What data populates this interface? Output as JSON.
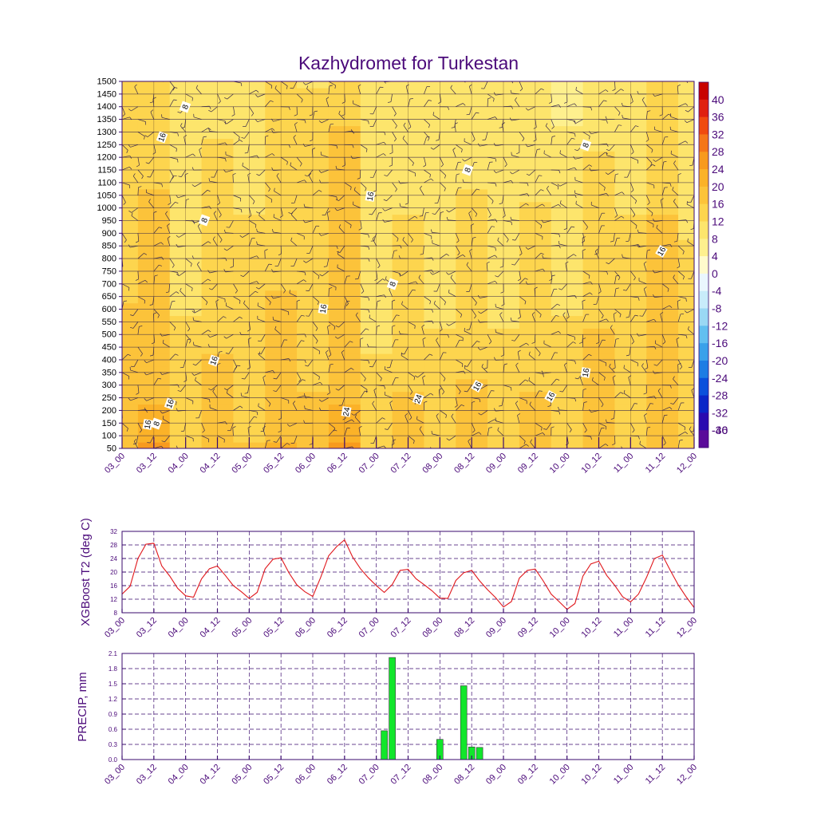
{
  "colors": {
    "axis": "#3a0a6e",
    "text": "#4b0a7a",
    "t2_line": "#e0161b",
    "precip_bar": "#11e62b",
    "grid": "#3a0a6e"
  },
  "time_labels": [
    "03_00",
    "03_12",
    "04_00",
    "04_12",
    "05_00",
    "05_12",
    "06_00",
    "06_12",
    "07_00",
    "07_12",
    "08_00",
    "08_12",
    "09_00",
    "09_12",
    "10_00",
    "10_12",
    "11_00",
    "11_12",
    "12_00"
  ],
  "chart_data": [
    {
      "type": "heatmap",
      "title": "Kazhydromet for Turkestan",
      "xlabel": "",
      "ylabel": "",
      "x_categories": [
        "03_00",
        "03_12",
        "04_00",
        "04_12",
        "05_00",
        "05_12",
        "06_00",
        "06_12",
        "07_00",
        "07_12",
        "08_00",
        "08_12",
        "09_00",
        "09_12",
        "10_00",
        "10_12",
        "11_00",
        "11_12",
        "12_00"
      ],
      "y_levels": [
        50,
        100,
        150,
        200,
        250,
        300,
        350,
        400,
        450,
        500,
        550,
        600,
        650,
        700,
        750,
        800,
        850,
        900,
        950,
        1000,
        1050,
        1100,
        1150,
        1200,
        1250,
        1300,
        1350,
        1400,
        1450,
        1500
      ],
      "ylim": [
        50,
        1500
      ],
      "colorbar": {
        "labels": [
          "40",
          "36",
          "32",
          "28",
          "24",
          "20",
          "16",
          "12",
          "8",
          "4",
          "0",
          "-4",
          "-8",
          "-12",
          "-16",
          "-20",
          "-24",
          "-28",
          "-32",
          "-36",
          "-40"
        ],
        "colors": [
          "#c80000",
          "#e02010",
          "#f04a10",
          "#f5761a",
          "#f89a1e",
          "#fbb228",
          "#fcc33a",
          "#fdd54e",
          "#fde56c",
          "#fef08e",
          "#fffbcc",
          "#eaf7fd",
          "#c8ecfa",
          "#9ad8f4",
          "#62bff0",
          "#3aa1ea",
          "#1d7de4",
          "#0a50dc",
          "#0a26c8",
          "#2a0ab0",
          "#5a0a9a"
        ]
      },
      "contour_labels": [
        "8",
        "16",
        "8",
        "8",
        "16",
        "16",
        "16",
        "8",
        "24",
        "16",
        "24",
        "16",
        "8",
        "16",
        "8",
        "16",
        "16",
        "16"
      ],
      "temperature_columns": [
        [
          19,
          18,
          18,
          17,
          17,
          17,
          17,
          16,
          16,
          16,
          16,
          16,
          15,
          15,
          15,
          15,
          15,
          14,
          14,
          14,
          14,
          14,
          14,
          14,
          14,
          13,
          13,
          13,
          13,
          13
        ],
        [
          24,
          22,
          21,
          20,
          19,
          19,
          18,
          17,
          17,
          17,
          17,
          16,
          16,
          16,
          16,
          16,
          16,
          16,
          16,
          16,
          16,
          15,
          15,
          15,
          15,
          15,
          14,
          14,
          13,
          13
        ],
        [
          15,
          14,
          14,
          13,
          13,
          13,
          12,
          12,
          12,
          12,
          12,
          11,
          11,
          10,
          10,
          10,
          9,
          9,
          8,
          8,
          8,
          8,
          8,
          8,
          8,
          9,
          9,
          9,
          10,
          10
        ],
        [
          18,
          18,
          18,
          18,
          17,
          17,
          16,
          16,
          15,
          15,
          15,
          14,
          14,
          14,
          14,
          14,
          13,
          13,
          13,
          12,
          12,
          12,
          12,
          12,
          12,
          11,
          11,
          11,
          11,
          11
        ],
        [
          16,
          15,
          15,
          14,
          14,
          14,
          14,
          13,
          13,
          13,
          13,
          13,
          12,
          12,
          12,
          12,
          12,
          12,
          12,
          11,
          11,
          11,
          11,
          11,
          11,
          11,
          11,
          11,
          10,
          10
        ],
        [
          20,
          19,
          19,
          18,
          18,
          18,
          17,
          17,
          17,
          16,
          16,
          16,
          16,
          15,
          15,
          14,
          14,
          14,
          14,
          13,
          13,
          13,
          13,
          13,
          13,
          12,
          12,
          12,
          12,
          12
        ],
        [
          17,
          16,
          16,
          16,
          16,
          15,
          15,
          15,
          15,
          15,
          15,
          15,
          14,
          14,
          14,
          14,
          14,
          14,
          13,
          13,
          13,
          13,
          13,
          12,
          12,
          12,
          12,
          12,
          12,
          11
        ],
        [
          25,
          23,
          22,
          20,
          19,
          19,
          19,
          18,
          18,
          18,
          18,
          18,
          17,
          17,
          17,
          17,
          17,
          17,
          17,
          16,
          16,
          16,
          16,
          16,
          16,
          16,
          15,
          15,
          15,
          15
        ],
        [
          15,
          14,
          14,
          13,
          13,
          12,
          12,
          12,
          11,
          11,
          10,
          10,
          9,
          8,
          8,
          8,
          8,
          8,
          8,
          8,
          8,
          8,
          8,
          8,
          8,
          8,
          8,
          8,
          8,
          8
        ],
        [
          18,
          17,
          17,
          16,
          16,
          15,
          15,
          15,
          14,
          14,
          14,
          13,
          13,
          13,
          12,
          12,
          12,
          12,
          12,
          11,
          11,
          11,
          10,
          10,
          10,
          10,
          10,
          9,
          9,
          9
        ],
        [
          15,
          14,
          14,
          13,
          13,
          13,
          12,
          12,
          12,
          12,
          11,
          11,
          11,
          11,
          11,
          10,
          10,
          9,
          9,
          9,
          9,
          9,
          9,
          9,
          8,
          8,
          8,
          8,
          8,
          8
        ],
        [
          18,
          17,
          17,
          16,
          16,
          16,
          15,
          15,
          15,
          15,
          14,
          14,
          14,
          14,
          13,
          13,
          13,
          12,
          12,
          12,
          12,
          11,
          11,
          11,
          11,
          10,
          10,
          10,
          10,
          10
        ],
        [
          14,
          14,
          13,
          13,
          13,
          12,
          12,
          12,
          12,
          12,
          11,
          11,
          11,
          11,
          11,
          10,
          10,
          10,
          10,
          10,
          9,
          9,
          9,
          9,
          9,
          9,
          9,
          8,
          8,
          8
        ],
        [
          17,
          17,
          16,
          16,
          16,
          15,
          15,
          15,
          14,
          14,
          14,
          14,
          13,
          13,
          13,
          12,
          12,
          12,
          12,
          12,
          11,
          11,
          11,
          11,
          11,
          11,
          10,
          10,
          10,
          10
        ],
        [
          14,
          13,
          13,
          13,
          12,
          12,
          12,
          12,
          12,
          12,
          12,
          11,
          11,
          11,
          11,
          11,
          11,
          10,
          10,
          10,
          10,
          10,
          9,
          9,
          8,
          8,
          7,
          7,
          7,
          7
        ],
        [
          17,
          17,
          17,
          16,
          16,
          16,
          16,
          16,
          16,
          16,
          15,
          15,
          15,
          14,
          14,
          14,
          13,
          13,
          13,
          12,
          12,
          12,
          12,
          12,
          11,
          11,
          11,
          11,
          11,
          11
        ],
        [
          14,
          14,
          14,
          14,
          13,
          13,
          13,
          13,
          13,
          13,
          12,
          12,
          12,
          12,
          12,
          12,
          12,
          12,
          12,
          11,
          11,
          11,
          11,
          10,
          10,
          10,
          10,
          10,
          10,
          9
        ],
        [
          19,
          18,
          18,
          18,
          18,
          17,
          17,
          17,
          17,
          17,
          17,
          17,
          17,
          17,
          16,
          16,
          16,
          16,
          16,
          15,
          15,
          15,
          15,
          14,
          14,
          14,
          14,
          13,
          13,
          13
        ],
        [
          14,
          14,
          14,
          13,
          13,
          13,
          13,
          13,
          13,
          13,
          12,
          12,
          12,
          12,
          12,
          12,
          12,
          11,
          11,
          11,
          11,
          11,
          10,
          10,
          10,
          10,
          10,
          10,
          9,
          9
        ]
      ],
      "has_wind_barbs": true
    },
    {
      "type": "line",
      "title": "",
      "xlabel": "",
      "ylabel": "XGBoost T2 (deg C)",
      "x_categories": [
        "03_00",
        "03_12",
        "04_00",
        "04_12",
        "05_00",
        "05_12",
        "06_00",
        "06_12",
        "07_00",
        "07_12",
        "08_00",
        "08_12",
        "09_00",
        "09_12",
        "10_00",
        "10_12",
        "11_00",
        "11_12",
        "12_00"
      ],
      "yticks": [
        "8",
        "12",
        "16",
        "20",
        "24",
        "28",
        "32"
      ],
      "ylim": [
        8,
        32
      ],
      "series": [
        {
          "name": "XGBoost T2",
          "x": [
            0,
            3,
            6,
            9,
            12,
            15,
            18,
            21,
            24,
            27,
            30,
            33,
            36,
            39,
            42,
            45,
            48,
            51,
            54,
            57,
            60,
            63,
            66,
            69,
            72,
            75,
            78,
            81,
            84,
            87,
            90,
            93,
            96,
            99,
            102,
            105,
            108,
            111,
            114,
            117,
            120,
            123,
            126,
            129,
            132,
            135,
            138,
            141,
            144,
            147,
            150,
            153,
            156,
            159,
            162,
            165,
            168,
            171,
            174,
            177,
            180,
            183,
            186,
            189,
            192,
            195,
            198,
            201,
            204,
            207,
            210,
            213,
            216
          ],
          "values": [
            13.5,
            15.8,
            24,
            28.2,
            28.5,
            21.8,
            18.8,
            15.2,
            13,
            12.6,
            18,
            21,
            21.8,
            19,
            16,
            14.2,
            12.2,
            14,
            21,
            23.8,
            24.2,
            19.8,
            16.2,
            14.2,
            12.8,
            18.5,
            24.8,
            27.5,
            29.5,
            24.5,
            21,
            18.3,
            16,
            14,
            16.3,
            20.5,
            20.8,
            18,
            16.3,
            14.5,
            12.3,
            12.2,
            17.5,
            19.8,
            20.5,
            17.4,
            14.8,
            12.5,
            9.7,
            11.3,
            18.2,
            20.5,
            20.9,
            17.4,
            13.5,
            11.3,
            9,
            10.7,
            18.8,
            22.4,
            23.2,
            19,
            16.1,
            12.7,
            11.2,
            13.5,
            18.4,
            24,
            25,
            20.5,
            16.2,
            12.7,
            9.5
          ]
        }
      ]
    },
    {
      "type": "bar",
      "title": "",
      "xlabel": "",
      "ylabel": "PRECIP, mm",
      "x_categories": [
        "03_00",
        "03_12",
        "04_00",
        "04_12",
        "05_00",
        "05_12",
        "06_00",
        "06_12",
        "07_00",
        "07_12",
        "08_00",
        "08_12",
        "09_00",
        "09_12",
        "10_00",
        "10_12",
        "11_00",
        "11_12",
        "12_00"
      ],
      "yticks": [
        "0.0",
        "0.3",
        "0.6",
        "0.9",
        "1.2",
        "1.5",
        "1.8",
        "2.1"
      ],
      "ylim": [
        0,
        2.1
      ],
      "bars": [
        {
          "hour": 99,
          "value": 0.57
        },
        {
          "hour": 102,
          "value": 2.02
        },
        {
          "hour": 120,
          "value": 0.4
        },
        {
          "hour": 129,
          "value": 1.46
        },
        {
          "hour": 132,
          "value": 0.25
        },
        {
          "hour": 135,
          "value": 0.24
        }
      ]
    }
  ]
}
